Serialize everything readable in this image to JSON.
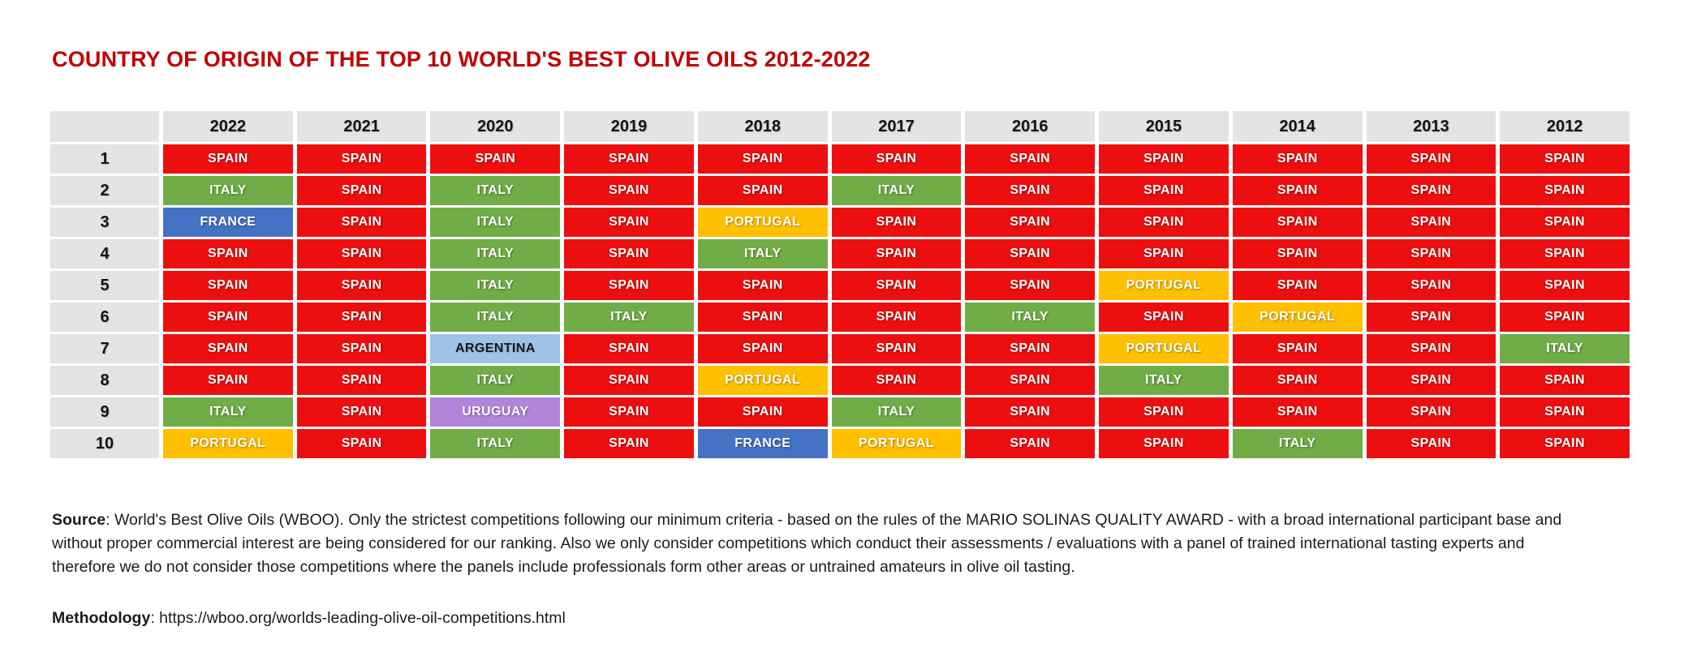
{
  "title": "COUNTRY OF ORIGIN OF THE TOP 10 WORLD'S BEST OLIVE OILS 2012-2022",
  "chart_data": {
    "type": "table",
    "title": "COUNTRY OF ORIGIN OF THE TOP 10 WORLD'S BEST OLIVE OILS 2012-2022",
    "corner_label": "",
    "years": [
      "2022",
      "2021",
      "2020",
      "2019",
      "2018",
      "2017",
      "2016",
      "2015",
      "2014",
      "2013",
      "2012"
    ],
    "rows": [
      {
        "rank": "1",
        "countries": [
          "SPAIN",
          "SPAIN",
          "SPAIN",
          "SPAIN",
          "SPAIN",
          "SPAIN",
          "SPAIN",
          "SPAIN",
          "SPAIN",
          "SPAIN",
          "SPAIN"
        ]
      },
      {
        "rank": "2",
        "countries": [
          "ITALY",
          "SPAIN",
          "ITALY",
          "SPAIN",
          "SPAIN",
          "ITALY",
          "SPAIN",
          "SPAIN",
          "SPAIN",
          "SPAIN",
          "SPAIN"
        ]
      },
      {
        "rank": "3",
        "countries": [
          "FRANCE",
          "SPAIN",
          "ITALY",
          "SPAIN",
          "PORTUGAL",
          "SPAIN",
          "SPAIN",
          "SPAIN",
          "SPAIN",
          "SPAIN",
          "SPAIN"
        ]
      },
      {
        "rank": "4",
        "countries": [
          "SPAIN",
          "SPAIN",
          "ITALY",
          "SPAIN",
          "ITALY",
          "SPAIN",
          "SPAIN",
          "SPAIN",
          "SPAIN",
          "SPAIN",
          "SPAIN"
        ]
      },
      {
        "rank": "5",
        "countries": [
          "SPAIN",
          "SPAIN",
          "ITALY",
          "SPAIN",
          "SPAIN",
          "SPAIN",
          "SPAIN",
          "PORTUGAL",
          "SPAIN",
          "SPAIN",
          "SPAIN"
        ]
      },
      {
        "rank": "6",
        "countries": [
          "SPAIN",
          "SPAIN",
          "ITALY",
          "ITALY",
          "SPAIN",
          "SPAIN",
          "ITALY",
          "SPAIN",
          "PORTUGAL",
          "SPAIN",
          "SPAIN"
        ]
      },
      {
        "rank": "7",
        "countries": [
          "SPAIN",
          "SPAIN",
          "ARGENTINA",
          "SPAIN",
          "SPAIN",
          "SPAIN",
          "SPAIN",
          "PORTUGAL",
          "SPAIN",
          "SPAIN",
          "ITALY"
        ]
      },
      {
        "rank": "8",
        "countries": [
          "SPAIN",
          "SPAIN",
          "ITALY",
          "SPAIN",
          "PORTUGAL",
          "SPAIN",
          "SPAIN",
          "ITALY",
          "SPAIN",
          "SPAIN",
          "SPAIN"
        ]
      },
      {
        "rank": "9",
        "countries": [
          "ITALY",
          "SPAIN",
          "URUGUAY",
          "SPAIN",
          "SPAIN",
          "ITALY",
          "SPAIN",
          "SPAIN",
          "SPAIN",
          "SPAIN",
          "SPAIN"
        ]
      },
      {
        "rank": "10",
        "countries": [
          "PORTUGAL",
          "SPAIN",
          "ITALY",
          "SPAIN",
          "FRANCE",
          "PORTUGAL",
          "SPAIN",
          "SPAIN",
          "ITALY",
          "SPAIN",
          "SPAIN"
        ]
      }
    ]
  },
  "colors": {
    "title": "#C00000",
    "header_bg": "#E4E4E4",
    "SPAIN": {
      "bg": "#ED0F0F",
      "text": "#FFFFFF"
    },
    "ITALY": {
      "bg": "#70AD47",
      "text": "#FFFFFF"
    },
    "FRANCE": {
      "bg": "#4472C4",
      "text": "#FFFFFF"
    },
    "PORTUGAL": {
      "bg": "#FFC000",
      "text": "#FFFFFF"
    },
    "ARGENTINA": {
      "bg": "#9DC3E6",
      "text": "#1A1A1A"
    },
    "URUGUAY": {
      "bg": "#B285DB",
      "text": "#FFFFFF"
    }
  },
  "footer": {
    "source_label": "Source",
    "source_text": ": World's Best Olive Oils (WBOO). Only the strictest competitions following our minimum criteria - based on the rules of the MARIO SOLINAS QUALITY AWARD - with a broad international participant base and without proper commercial interest are being considered for our ranking. Also we only consider competitions which conduct their assessments / evaluations with a panel of trained international tasting experts and therefore we do not consider those competitions where the panels include professionals form other areas or untrained amateurs in olive oil tasting.",
    "methodology_label": "Methodology",
    "methodology_text": ": https://wboo.org/worlds-leading-olive-oil-competitions.html"
  }
}
